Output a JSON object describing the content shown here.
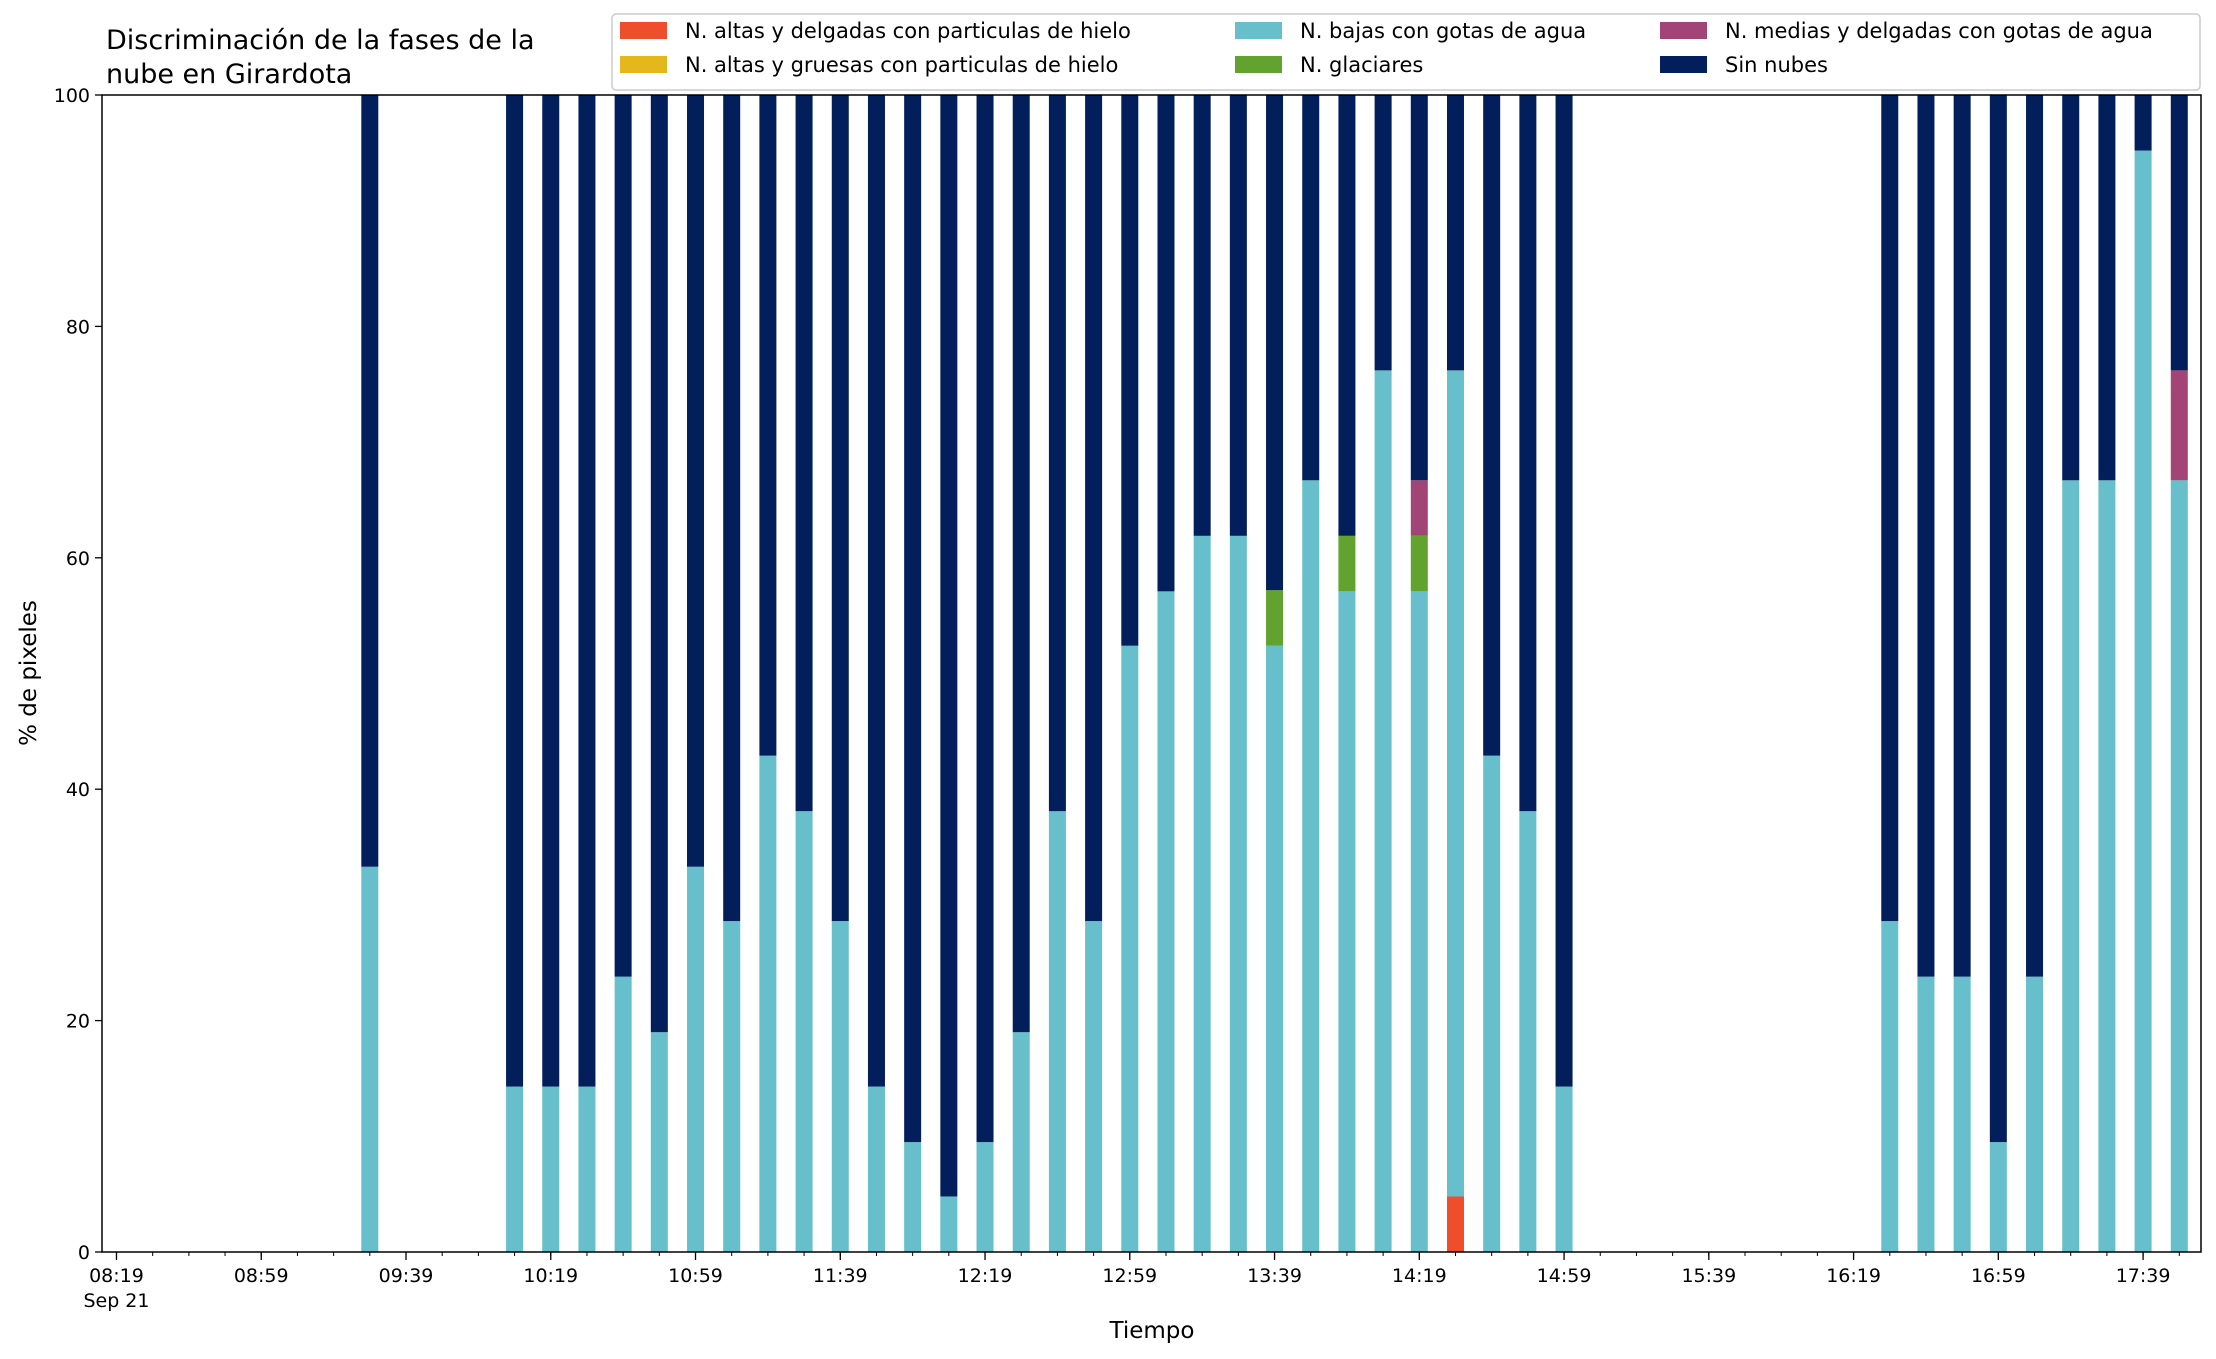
{
  "chart_data": {
    "type": "bar",
    "stacked": true,
    "title": "Discriminación de la fases de la\nnube en Girardota",
    "xlabel": "Tiempo",
    "ylabel": "% de pixeles",
    "ylim": [
      0,
      100
    ],
    "yticks": [
      0,
      20,
      40,
      60,
      80,
      100
    ],
    "xlim": [
      "08:15",
      "17:55"
    ],
    "x_major_ticks": [
      "08:19",
      "08:59",
      "09:39",
      "10:19",
      "10:59",
      "11:39",
      "12:19",
      "12:59",
      "13:39",
      "14:19",
      "14:59",
      "15:39",
      "16:19",
      "16:59",
      "17:39"
    ],
    "x_tick_first_sublabel": "Sep 21",
    "x_minor_step_minutes": 10,
    "grid": false,
    "legend_position": "top-right",
    "legend_columns": 3,
    "colors": {
      "n_altas_delgadas_hielo": "#ee4e2c",
      "n_altas_gruesas_hielo": "#e4b71c",
      "n_bajas_agua": "#67bfcb",
      "n_glaciares": "#62a22e",
      "n_medias_delgadas_agua": "#a24576",
      "sin_nubes": "#021f5c"
    },
    "series": [
      {
        "key": "n_altas_delgadas_hielo",
        "name": "N. altas y delgadas con particulas de hielo"
      },
      {
        "key": "n_altas_gruesas_hielo",
        "name": "N. altas y gruesas con particulas de hielo"
      },
      {
        "key": "n_bajas_agua",
        "name": "N. bajas con gotas de agua"
      },
      {
        "key": "n_glaciares",
        "name": "N. glaciares"
      },
      {
        "key": "n_medias_delgadas_agua",
        "name": "N. medias y delgadas con gotas de agua"
      },
      {
        "key": "sin_nubes",
        "name": "Sin nubes"
      }
    ],
    "stack_order": [
      "n_altas_delgadas_hielo",
      "n_altas_gruesas_hielo",
      "n_bajas_agua",
      "n_glaciares",
      "n_medias_delgadas_agua",
      "sin_nubes"
    ],
    "bars": [
      {
        "time": "09:29",
        "n_altas_delgadas_hielo": 0,
        "n_altas_gruesas_hielo": 0,
        "n_bajas_agua": 33.3,
        "n_glaciares": 0,
        "n_medias_delgadas_agua": 0,
        "sin_nubes": 66.7
      },
      {
        "time": "10:09",
        "n_altas_delgadas_hielo": 0,
        "n_altas_gruesas_hielo": 0,
        "n_bajas_agua": 14.3,
        "n_glaciares": 0,
        "n_medias_delgadas_agua": 0,
        "sin_nubes": 85.7
      },
      {
        "time": "10:19",
        "n_altas_delgadas_hielo": 0,
        "n_altas_gruesas_hielo": 0,
        "n_bajas_agua": 14.3,
        "n_glaciares": 0,
        "n_medias_delgadas_agua": 0,
        "sin_nubes": 85.7
      },
      {
        "time": "10:29",
        "n_altas_delgadas_hielo": 0,
        "n_altas_gruesas_hielo": 0,
        "n_bajas_agua": 14.3,
        "n_glaciares": 0,
        "n_medias_delgadas_agua": 0,
        "sin_nubes": 85.7
      },
      {
        "time": "10:39",
        "n_altas_delgadas_hielo": 0,
        "n_altas_gruesas_hielo": 0,
        "n_bajas_agua": 23.8,
        "n_glaciares": 0,
        "n_medias_delgadas_agua": 0,
        "sin_nubes": 76.2
      },
      {
        "time": "10:49",
        "n_altas_delgadas_hielo": 0,
        "n_altas_gruesas_hielo": 0,
        "n_bajas_agua": 19.0,
        "n_glaciares": 0,
        "n_medias_delgadas_agua": 0,
        "sin_nubes": 81.0
      },
      {
        "time": "10:59",
        "n_altas_delgadas_hielo": 0,
        "n_altas_gruesas_hielo": 0,
        "n_bajas_agua": 33.3,
        "n_glaciares": 0,
        "n_medias_delgadas_agua": 0,
        "sin_nubes": 66.7
      },
      {
        "time": "11:09",
        "n_altas_delgadas_hielo": 0,
        "n_altas_gruesas_hielo": 0,
        "n_bajas_agua": 28.6,
        "n_glaciares": 0,
        "n_medias_delgadas_agua": 0,
        "sin_nubes": 71.4
      },
      {
        "time": "11:19",
        "n_altas_delgadas_hielo": 0,
        "n_altas_gruesas_hielo": 0,
        "n_bajas_agua": 42.9,
        "n_glaciares": 0,
        "n_medias_delgadas_agua": 0,
        "sin_nubes": 57.1
      },
      {
        "time": "11:29",
        "n_altas_delgadas_hielo": 0,
        "n_altas_gruesas_hielo": 0,
        "n_bajas_agua": 38.1,
        "n_glaciares": 0,
        "n_medias_delgadas_agua": 0,
        "sin_nubes": 61.9
      },
      {
        "time": "11:39",
        "n_altas_delgadas_hielo": 0,
        "n_altas_gruesas_hielo": 0,
        "n_bajas_agua": 28.6,
        "n_glaciares": 0,
        "n_medias_delgadas_agua": 0,
        "sin_nubes": 71.4
      },
      {
        "time": "11:49",
        "n_altas_delgadas_hielo": 0,
        "n_altas_gruesas_hielo": 0,
        "n_bajas_agua": 14.3,
        "n_glaciares": 0,
        "n_medias_delgadas_agua": 0,
        "sin_nubes": 85.7
      },
      {
        "time": "11:59",
        "n_altas_delgadas_hielo": 0,
        "n_altas_gruesas_hielo": 0,
        "n_bajas_agua": 9.5,
        "n_glaciares": 0,
        "n_medias_delgadas_agua": 0,
        "sin_nubes": 90.5
      },
      {
        "time": "12:09",
        "n_altas_delgadas_hielo": 0,
        "n_altas_gruesas_hielo": 0,
        "n_bajas_agua": 4.8,
        "n_glaciares": 0,
        "n_medias_delgadas_agua": 0,
        "sin_nubes": 95.2
      },
      {
        "time": "12:19",
        "n_altas_delgadas_hielo": 0,
        "n_altas_gruesas_hielo": 0,
        "n_bajas_agua": 9.5,
        "n_glaciares": 0,
        "n_medias_delgadas_agua": 0,
        "sin_nubes": 90.5
      },
      {
        "time": "12:29",
        "n_altas_delgadas_hielo": 0,
        "n_altas_gruesas_hielo": 0,
        "n_bajas_agua": 19.0,
        "n_glaciares": 0,
        "n_medias_delgadas_agua": 0,
        "sin_nubes": 81.0
      },
      {
        "time": "12:39",
        "n_altas_delgadas_hielo": 0,
        "n_altas_gruesas_hielo": 0,
        "n_bajas_agua": 38.1,
        "n_glaciares": 0,
        "n_medias_delgadas_agua": 0,
        "sin_nubes": 61.9
      },
      {
        "time": "12:49",
        "n_altas_delgadas_hielo": 0,
        "n_altas_gruesas_hielo": 0,
        "n_bajas_agua": 28.6,
        "n_glaciares": 0,
        "n_medias_delgadas_agua": 0,
        "sin_nubes": 71.4
      },
      {
        "time": "12:59",
        "n_altas_delgadas_hielo": 0,
        "n_altas_gruesas_hielo": 0,
        "n_bajas_agua": 52.4,
        "n_glaciares": 0,
        "n_medias_delgadas_agua": 0,
        "sin_nubes": 47.6
      },
      {
        "time": "13:09",
        "n_altas_delgadas_hielo": 0,
        "n_altas_gruesas_hielo": 0,
        "n_bajas_agua": 57.1,
        "n_glaciares": 0,
        "n_medias_delgadas_agua": 0,
        "sin_nubes": 42.9
      },
      {
        "time": "13:19",
        "n_altas_delgadas_hielo": 0,
        "n_altas_gruesas_hielo": 0,
        "n_bajas_agua": 61.9,
        "n_glaciares": 0,
        "n_medias_delgadas_agua": 0,
        "sin_nubes": 38.1
      },
      {
        "time": "13:29",
        "n_altas_delgadas_hielo": 0,
        "n_altas_gruesas_hielo": 0,
        "n_bajas_agua": 61.9,
        "n_glaciares": 0,
        "n_medias_delgadas_agua": 0,
        "sin_nubes": 38.1
      },
      {
        "time": "13:39",
        "n_altas_delgadas_hielo": 0,
        "n_altas_gruesas_hielo": 0,
        "n_bajas_agua": 52.4,
        "n_glaciares": 4.8,
        "n_medias_delgadas_agua": 0,
        "sin_nubes": 42.8
      },
      {
        "time": "13:49",
        "n_altas_delgadas_hielo": 0,
        "n_altas_gruesas_hielo": 0,
        "n_bajas_agua": 66.7,
        "n_glaciares": 0,
        "n_medias_delgadas_agua": 0,
        "sin_nubes": 33.3
      },
      {
        "time": "13:59",
        "n_altas_delgadas_hielo": 0,
        "n_altas_gruesas_hielo": 0,
        "n_bajas_agua": 57.1,
        "n_glaciares": 4.8,
        "n_medias_delgadas_agua": 0,
        "sin_nubes": 38.1
      },
      {
        "time": "14:09",
        "n_altas_delgadas_hielo": 0,
        "n_altas_gruesas_hielo": 0,
        "n_bajas_agua": 76.2,
        "n_glaciares": 0,
        "n_medias_delgadas_agua": 0,
        "sin_nubes": 23.8
      },
      {
        "time": "14:19",
        "n_altas_delgadas_hielo": 0,
        "n_altas_gruesas_hielo": 0,
        "n_bajas_agua": 57.1,
        "n_glaciares": 4.8,
        "n_medias_delgadas_agua": 4.8,
        "sin_nubes": 33.3
      },
      {
        "time": "14:29",
        "n_altas_delgadas_hielo": 4.8,
        "n_altas_gruesas_hielo": 0,
        "n_bajas_agua": 71.4,
        "n_glaciares": 0,
        "n_medias_delgadas_agua": 0,
        "sin_nubes": 23.8
      },
      {
        "time": "14:39",
        "n_altas_delgadas_hielo": 0,
        "n_altas_gruesas_hielo": 0,
        "n_bajas_agua": 42.9,
        "n_glaciares": 0,
        "n_medias_delgadas_agua": 0,
        "sin_nubes": 57.1
      },
      {
        "time": "14:49",
        "n_altas_delgadas_hielo": 0,
        "n_altas_gruesas_hielo": 0,
        "n_bajas_agua": 38.1,
        "n_glaciares": 0,
        "n_medias_delgadas_agua": 0,
        "sin_nubes": 61.9
      },
      {
        "time": "14:59",
        "n_altas_delgadas_hielo": 0,
        "n_altas_gruesas_hielo": 0,
        "n_bajas_agua": 14.3,
        "n_glaciares": 0,
        "n_medias_delgadas_agua": 0,
        "sin_nubes": 85.7
      },
      {
        "time": "16:29",
        "n_altas_delgadas_hielo": 0,
        "n_altas_gruesas_hielo": 0,
        "n_bajas_agua": 28.6,
        "n_glaciares": 0,
        "n_medias_delgadas_agua": 0,
        "sin_nubes": 71.4
      },
      {
        "time": "16:39",
        "n_altas_delgadas_hielo": 0,
        "n_altas_gruesas_hielo": 0,
        "n_bajas_agua": 23.8,
        "n_glaciares": 0,
        "n_medias_delgadas_agua": 0,
        "sin_nubes": 76.2
      },
      {
        "time": "16:49",
        "n_altas_delgadas_hielo": 0,
        "n_altas_gruesas_hielo": 0,
        "n_bajas_agua": 23.8,
        "n_glaciares": 0,
        "n_medias_delgadas_agua": 0,
        "sin_nubes": 76.2
      },
      {
        "time": "16:59",
        "n_altas_delgadas_hielo": 0,
        "n_altas_gruesas_hielo": 0,
        "n_bajas_agua": 9.5,
        "n_glaciares": 0,
        "n_medias_delgadas_agua": 0,
        "sin_nubes": 90.5
      },
      {
        "time": "17:09",
        "n_altas_delgadas_hielo": 0,
        "n_altas_gruesas_hielo": 0,
        "n_bajas_agua": 23.8,
        "n_glaciares": 0,
        "n_medias_delgadas_agua": 0,
        "sin_nubes": 76.2
      },
      {
        "time": "17:19",
        "n_altas_delgadas_hielo": 0,
        "n_altas_gruesas_hielo": 0,
        "n_bajas_agua": 66.7,
        "n_glaciares": 0,
        "n_medias_delgadas_agua": 0,
        "sin_nubes": 33.3
      },
      {
        "time": "17:29",
        "n_altas_delgadas_hielo": 0,
        "n_altas_gruesas_hielo": 0,
        "n_bajas_agua": 66.7,
        "n_glaciares": 0,
        "n_medias_delgadas_agua": 0,
        "sin_nubes": 33.3
      },
      {
        "time": "17:39",
        "n_altas_delgadas_hielo": 0,
        "n_altas_gruesas_hielo": 0,
        "n_bajas_agua": 95.2,
        "n_glaciares": 0,
        "n_medias_delgadas_agua": 0,
        "sin_nubes": 4.8
      },
      {
        "time": "17:49",
        "n_altas_delgadas_hielo": 0,
        "n_altas_gruesas_hielo": 0,
        "n_bajas_agua": 66.7,
        "n_glaciares": 0,
        "n_medias_delgadas_agua": 9.5,
        "sin_nubes": 23.8
      }
    ]
  }
}
